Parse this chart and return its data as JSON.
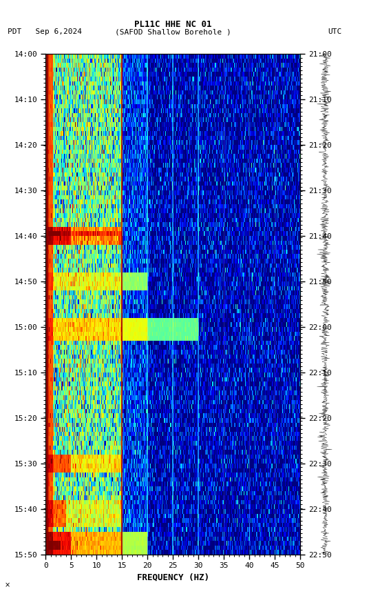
{
  "title_line1": "PL11C HHE NC 01",
  "title_line2_left": "PDT   Sep 6,2024",
  "title_line2_center": "(SAFOD Shallow Borehole )",
  "title_line2_right": "UTC",
  "xlabel": "FREQUENCY (HZ)",
  "freq_min": 0,
  "freq_max": 50,
  "freq_ticks": [
    0,
    5,
    10,
    15,
    20,
    25,
    30,
    35,
    40,
    45,
    50
  ],
  "pdt_ticks": [
    "14:00",
    "14:10",
    "14:20",
    "14:30",
    "14:40",
    "14:50",
    "15:00",
    "15:10",
    "15:20",
    "15:30",
    "15:40",
    "15:50"
  ],
  "utc_ticks": [
    "21:00",
    "21:10",
    "21:20",
    "21:30",
    "21:40",
    "21:50",
    "22:00",
    "22:10",
    "22:20",
    "22:30",
    "22:40",
    "22:50"
  ],
  "fig_width": 5.52,
  "fig_height": 8.64,
  "dpi": 100,
  "background_color": "#ffffff",
  "colormap": "jet",
  "noise_seed": 42,
  "red_line_freq": 15.0,
  "n_time": 110,
  "n_freq": 500,
  "vmin": 0,
  "vmax": 12
}
